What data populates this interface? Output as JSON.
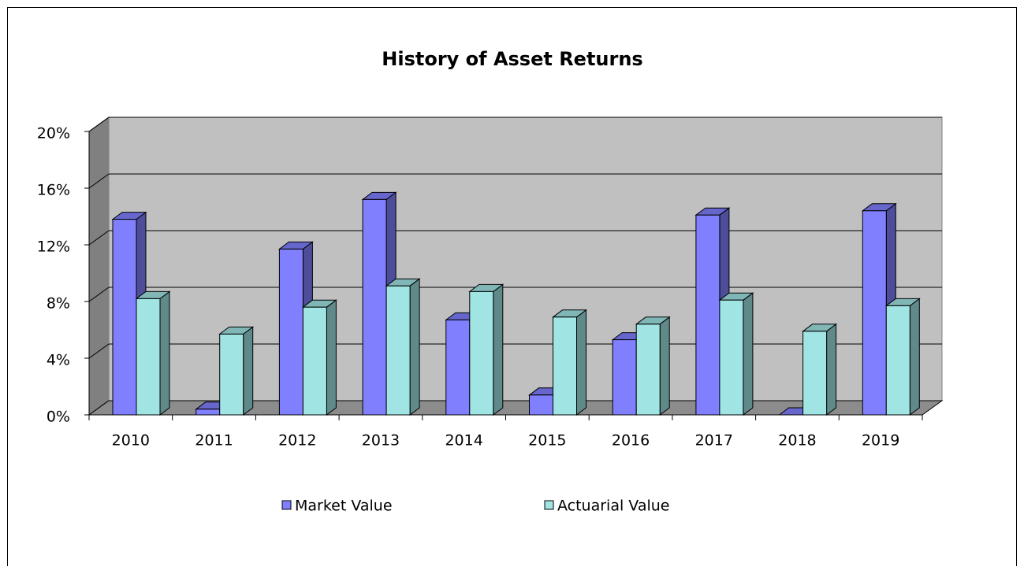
{
  "chart_data": {
    "type": "bar3d",
    "title": "History of Asset Returns",
    "categories": [
      "2010",
      "2011",
      "2012",
      "2013",
      "2014",
      "2015",
      "2016",
      "2017",
      "2018",
      "2019"
    ],
    "series": [
      {
        "name": "Market Value",
        "color": "#8080ff",
        "values": [
          13.8,
          0.4,
          11.7,
          15.2,
          6.7,
          1.4,
          5.3,
          14.1,
          0.0,
          14.4
        ]
      },
      {
        "name": "Actuarial Value",
        "color": "#a0e4e4",
        "values": [
          8.2,
          5.7,
          7.6,
          9.1,
          8.7,
          6.9,
          6.4,
          8.1,
          5.9,
          7.7
        ]
      }
    ],
    "ylim": [
      0,
      20
    ],
    "yticks": [
      {
        "value": 0,
        "label": "0%"
      },
      {
        "value": 4,
        "label": "4%"
      },
      {
        "value": 8,
        "label": "8%"
      },
      {
        "value": 12,
        "label": "12%"
      },
      {
        "value": 16,
        "label": "16%"
      },
      {
        "value": 20,
        "label": "20%"
      }
    ],
    "grid": true,
    "legend": "bottom"
  }
}
